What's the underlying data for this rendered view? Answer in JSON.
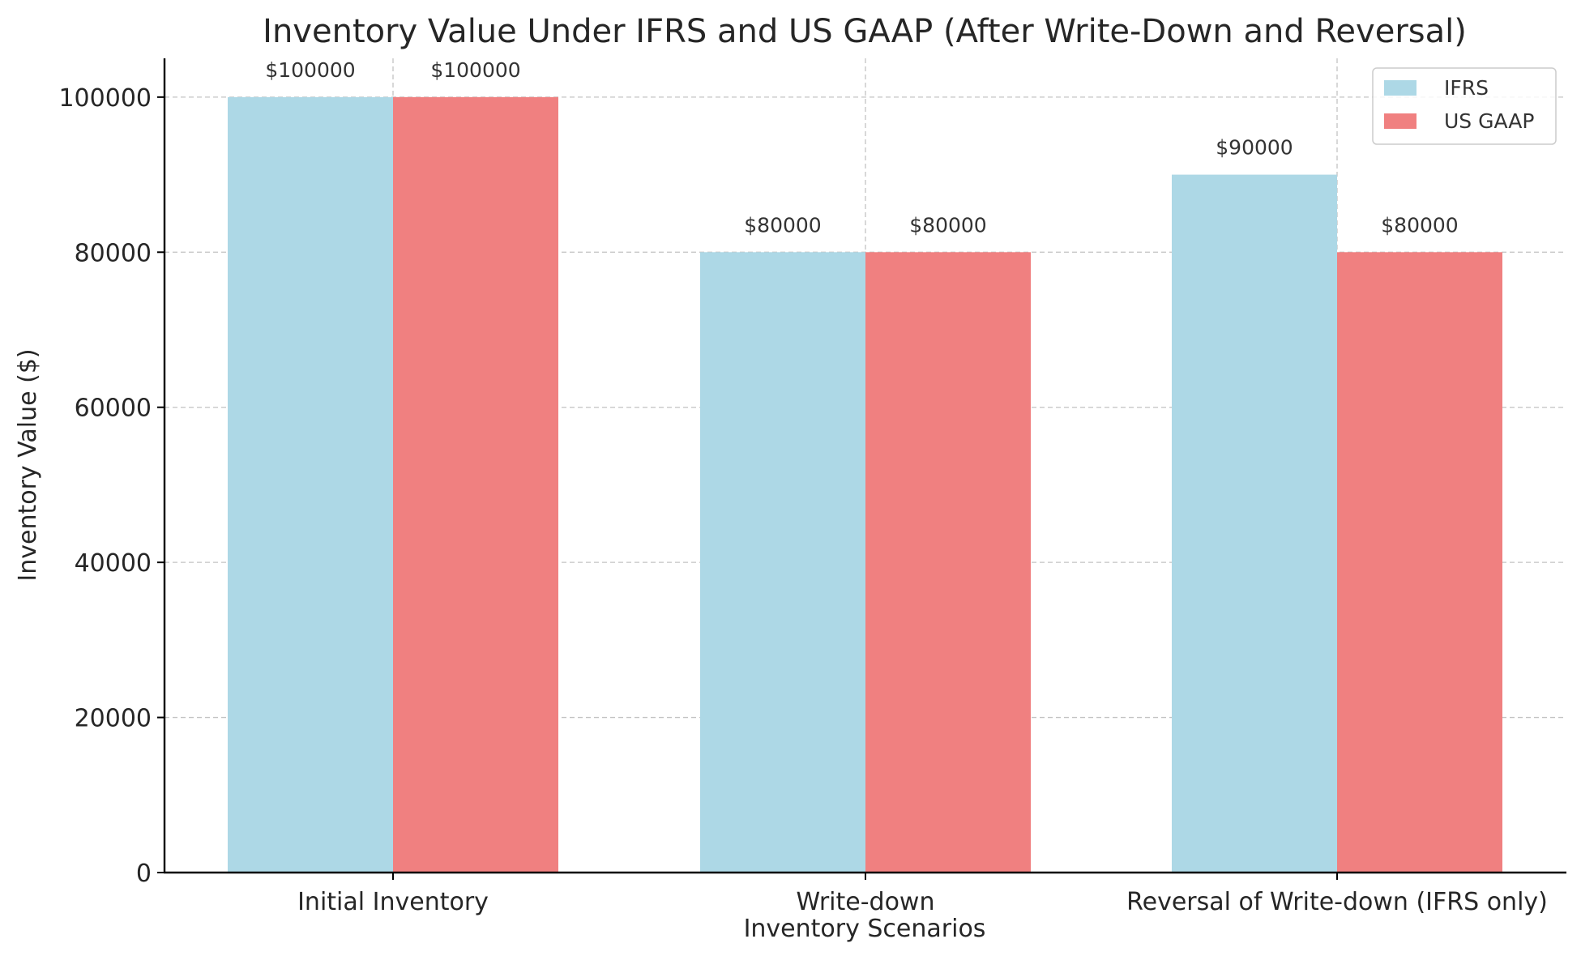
{
  "chart_data": {
    "type": "bar",
    "title": "Inventory Value Under IFRS and US GAAP (After Write-Down and Reversal)",
    "xlabel": "Inventory Scenarios",
    "ylabel": "Inventory Value ($)",
    "categories": [
      "Initial Inventory",
      "Write-down",
      "Reversal of Write-down (IFRS only)"
    ],
    "series": [
      {
        "name": "IFRS",
        "values": [
          100000,
          80000,
          90000
        ],
        "color": "#add8e6"
      },
      {
        "name": "US GAAP",
        "values": [
          100000,
          80000,
          80000
        ],
        "color": "#f08080"
      }
    ],
    "ylim": [
      0,
      105000
    ],
    "yticks": [
      0,
      20000,
      40000,
      60000,
      80000,
      100000
    ],
    "data_label_prefix": "$",
    "grid": true,
    "legend_position": "top-right"
  }
}
